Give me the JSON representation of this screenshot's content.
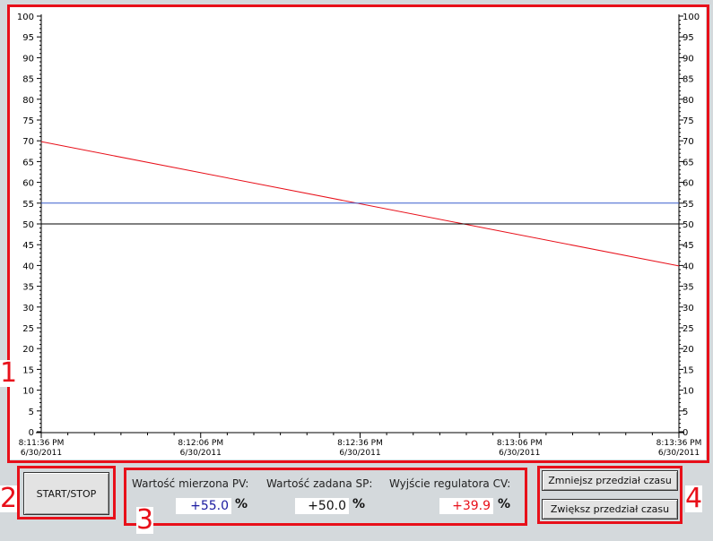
{
  "chart_data": {
    "type": "line",
    "y_ticks": [
      "100",
      "95",
      "90",
      "85",
      "80",
      "75",
      "70",
      "65",
      "60",
      "55",
      "50",
      "45",
      "40",
      "35",
      "30",
      "25",
      "20",
      "15",
      "10",
      "5",
      "0"
    ],
    "ylim": [
      0,
      100
    ],
    "x_ticks": [
      {
        "time": "8:11:36 PM",
        "date": "6/30/2011"
      },
      {
        "time": "8:12:06 PM",
        "date": "6/30/2011"
      },
      {
        "time": "8:12:36 PM",
        "date": "6/30/2011"
      },
      {
        "time": "8:13:06 PM",
        "date": "6/30/2011"
      },
      {
        "time": "8:13:36 PM",
        "date": "6/30/2011"
      }
    ],
    "series": [
      {
        "color": "#e8101a",
        "values": [
          69.8,
          39.9
        ]
      },
      {
        "color": "#3a5fcd",
        "values": [
          55.0,
          55.0
        ]
      },
      {
        "color": "#000000",
        "values": [
          50.0,
          50.0
        ]
      }
    ]
  },
  "controls": {
    "start_stop_label": "START/STOP",
    "decrease_label": "Zmniejsz przedział czasu",
    "increase_label": "Zwiększ przedział czasu"
  },
  "readouts": {
    "pv": {
      "label": "Wartość mierzona PV:",
      "value": "+55.0",
      "unit": "%",
      "color": "#1a1aa0"
    },
    "sp": {
      "label": "Wartość zadana SP:",
      "value": "+50.0",
      "unit": "%",
      "color": "#111111"
    },
    "cv": {
      "label": "Wyjście regulatora CV:",
      "value": "+39.9",
      "unit": "%",
      "color": "#e8101a"
    }
  },
  "callouts": [
    "1",
    "2",
    "3",
    "4"
  ]
}
